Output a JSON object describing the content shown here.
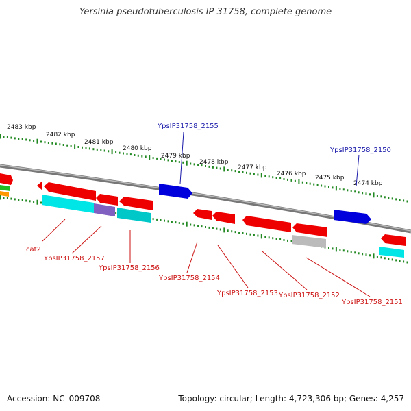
{
  "title": "Yersinia pseudotuberculosis IP 31758, complete genome",
  "footer": {
    "accession": "Accession: NC_009708",
    "summary": "Topology: circular; Length: 4,723,306 bp; Genes: 4,257"
  },
  "kbp_labels": [
    "2483 kbp",
    "2482 kbp",
    "2481 kbp",
    "2480 kbp",
    "2479 kbp",
    "2478 kbp",
    "2477 kbp",
    "2476 kbp",
    "2475 kbp",
    "2474 kbp"
  ],
  "gene_labels": {
    "forward": [
      "YpsIP31758_2155",
      "YpsIP31758_2150"
    ],
    "reverse": [
      "cat2",
      "YpsIP31758_2157",
      "YpsIP31758_2156",
      "YpsIP31758_2154",
      "YpsIP31758_2153",
      "YpsIP31758_2152",
      "YpsIP31758_2151"
    ]
  },
  "colors": {
    "forward_gene": "#0000dd",
    "reverse_gene": "#ee0000",
    "backbone": "#888888",
    "tick": "#228822",
    "cyan_feature": "#00e5e5",
    "purple_feature": "#8060c0",
    "gray_feature": "#bbbbbb",
    "blue_label": "#1a1aaa",
    "red_label": "#cc1111"
  }
}
